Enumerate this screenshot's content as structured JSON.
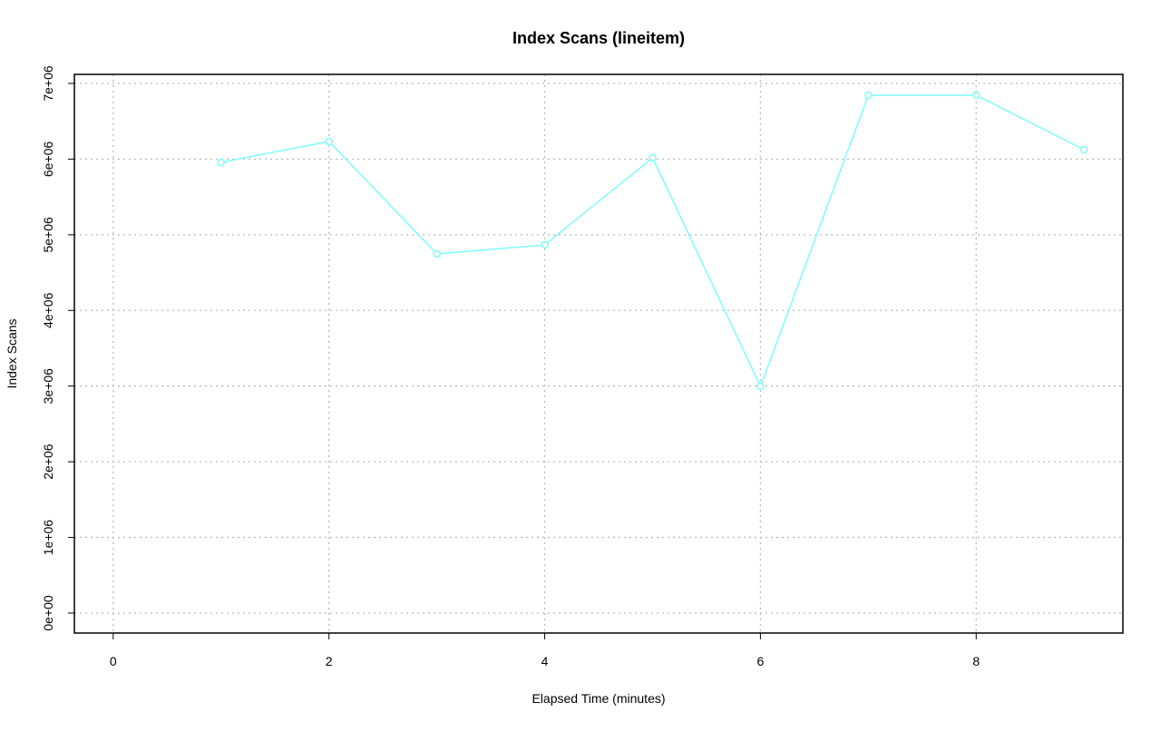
{
  "chart_data": {
    "type": "line",
    "title": "Index Scans (lineitem)",
    "x_label": "Elapsed Time (minutes)",
    "y_label": "Index Scans",
    "x": [
      1,
      2,
      3,
      4,
      5,
      6,
      7,
      8,
      9
    ],
    "series": [
      {
        "name": "Index Scans",
        "color": "#7ffcfc",
        "values": [
          5957000,
          6233000,
          4747000,
          4866000,
          6017000,
          2997000,
          6844000,
          6844000,
          6125000
        ]
      }
    ],
    "xlim": [
      -0.36,
      9.36
    ],
    "xticks": [
      0,
      2,
      4,
      6,
      8
    ],
    "ylim": [
      -264000,
      7120000
    ],
    "yticks": [
      {
        "value": 0,
        "label": "0e+00"
      },
      {
        "value": 1000000,
        "label": "1e+06"
      },
      {
        "value": 2000000,
        "label": "2e+06"
      },
      {
        "value": 3000000,
        "label": "3e+06"
      },
      {
        "value": 4000000,
        "label": "4e+06"
      },
      {
        "value": 5000000,
        "label": "5e+06"
      },
      {
        "value": 6000000,
        "label": "6e+06"
      },
      {
        "value": 7000000,
        "label": "7e+06"
      }
    ],
    "grid": true
  }
}
